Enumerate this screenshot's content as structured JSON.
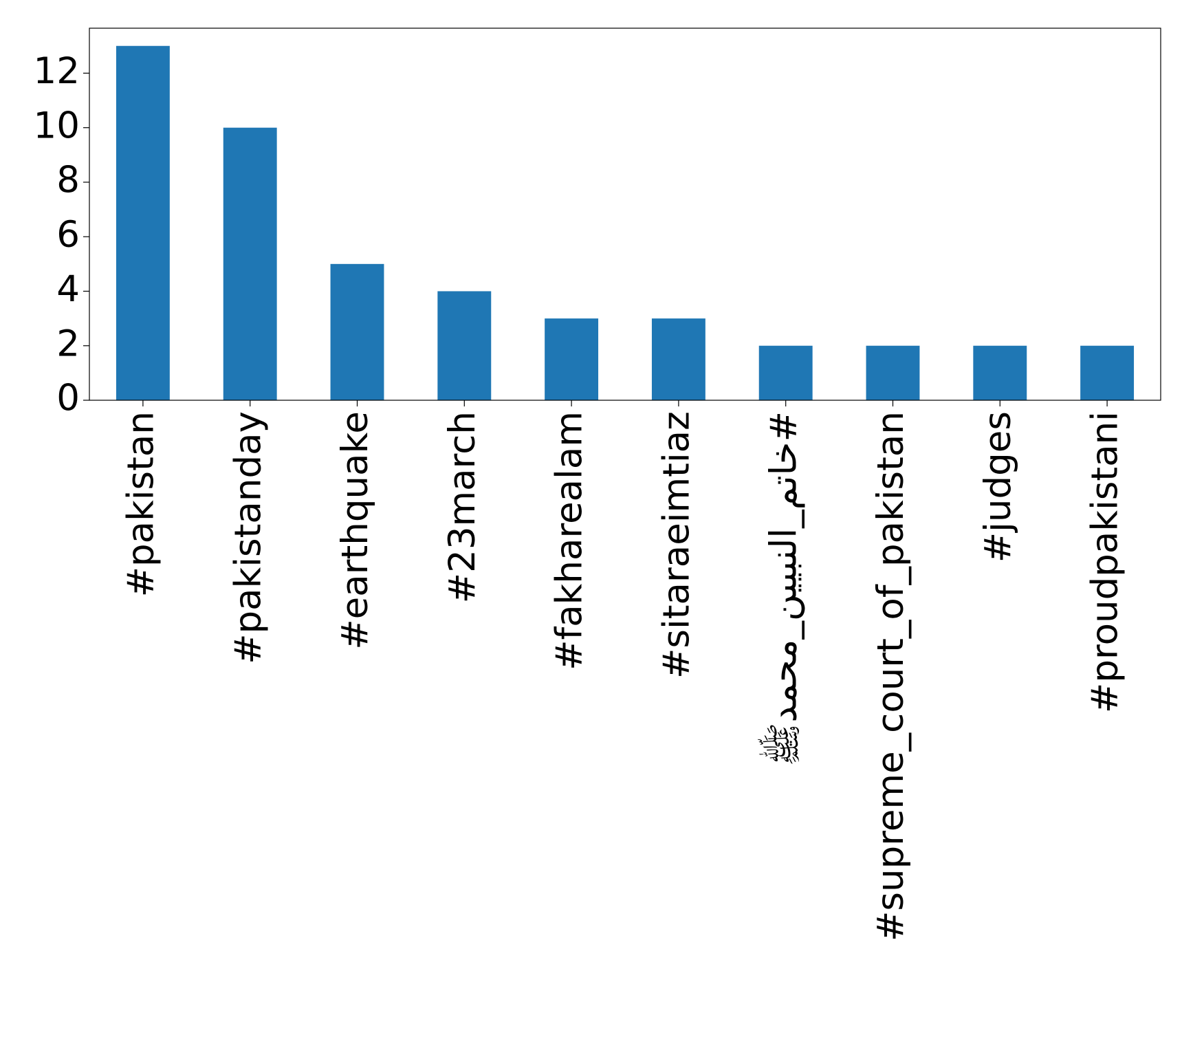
{
  "chart_data": {
    "type": "bar",
    "categories": [
      "#pakistan",
      "#pakistanday",
      "#earthquake",
      "#23march",
      "#fakharealam",
      "#sitaraeimtiaz",
      "#خاتم_النبیین_محمدﷺ",
      "#supreme_court_of_pakistan",
      "#judges",
      "#proudpakistani"
    ],
    "values": [
      13,
      10,
      5,
      4,
      3,
      3,
      2,
      2,
      2,
      2
    ],
    "color": "#1f77b4",
    "ylim": [
      0,
      13.65
    ],
    "yticks": [
      0,
      2,
      4,
      6,
      8,
      10,
      12
    ],
    "grid": false
  }
}
